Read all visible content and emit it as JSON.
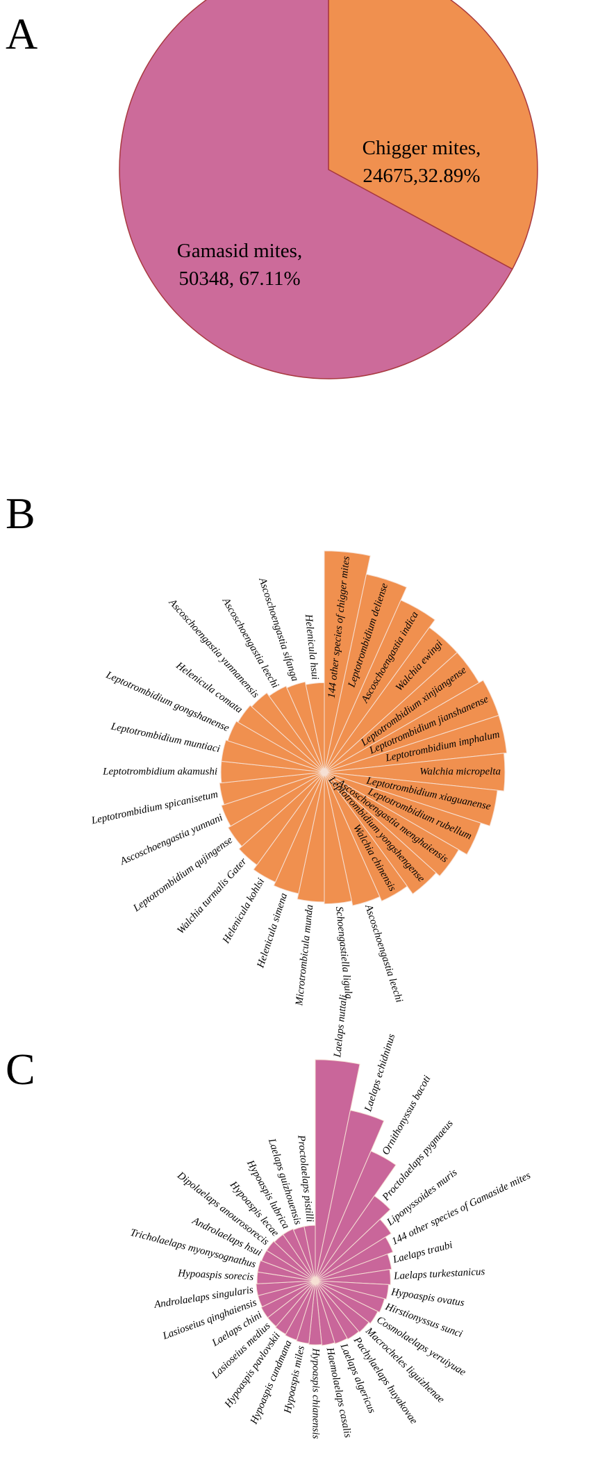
{
  "chart_data": [
    {
      "type": "pie",
      "label": "A",
      "categories": [
        "Chigger mites,",
        "Gamasid mites,"
      ],
      "values": [
        24675,
        50348
      ],
      "value_labels": [
        "24675,32.89%",
        "50348, 67.11%"
      ],
      "colors": [
        "#f0904f",
        "#cc6b9a"
      ]
    },
    {
      "type": "radial_bar",
      "label": "B",
      "color": "#f0904f",
      "ylim": [
        0,
        240
      ],
      "categories": [
        "144 other species of chigger mites",
        "Leptotrombidium deliense",
        "Ascoschoengastia indica",
        "Walchia ewingi",
        "Leptotrombidium xinjiangense",
        "Leptotrombidium jianshanense",
        "Leptotrombidium imphalum",
        "Walchia micropelta",
        "Leptotrombidium xiaguanense",
        "Leptotrombidium rubellum",
        "Ascoschoengastia menghaiensis",
        "Leptotrombidium yongshengense",
        "Walchia chinensis",
        "Ascoschoengastia leechi",
        "Schoengastiella ligula",
        "Microtrombicula munda",
        "Helenicula simena",
        "Helenicula kohlsi",
        "Walchia turmalis Gater",
        "Leptotrombidium qujingense",
        "Ascoschoengastia yunnani",
        "Leptotrombidium spicanisetum",
        "Leptotrombidium akamushi",
        "Leptotrombidium muntiaci",
        "Leptotrombidium gongshanense",
        "Helenicula comata",
        "Ascoschoengastia yunnanensis",
        "Ascoschoengastia leechi",
        "Ascoschoengastia sifanga",
        "Helenicula hsui"
      ],
      "values": [
        235,
        215,
        200,
        190,
        190,
        195,
        195,
        192,
        185,
        175,
        165,
        160,
        150,
        145,
        140,
        138,
        132,
        128,
        122,
        118,
        115,
        112,
        110,
        110,
        108,
        106,
        104,
        100,
        98,
        95
      ]
    },
    {
      "type": "radial_bar",
      "label": "C",
      "color": "#c9669a",
      "ylim": [
        0,
        240
      ],
      "categories": [
        "Laelaps nuttali",
        "Laelaps echidninus",
        "Ornithonyssus bacoti",
        "Proctolaelaps pygmaeus",
        "Liponyssoides muris",
        "144 other species of Gamaside mites",
        "Laelaps traubi",
        "Laelaps turkestanicus",
        "Hypoaspis ovatus",
        "Hirstionyssus sunci",
        "Cosmolaelaps yeruiyuae",
        "Macrocheles liguizhenae",
        "Pachylaelaps huyakovae",
        "Laelaps algericus",
        "Haemolaelaps casalis",
        "Hypoaspis chianensis",
        "Hypoaspis miles",
        "Hypoaspis cundmana",
        "Hypoaspis pavlovskii",
        "Lasioseius medius",
        "Laelaps chini",
        "Lasioseius qinghaiensis",
        "Androlaelaps singularis",
        "Hypoaspis sorecis",
        "Tricholaelaps myonysognathus",
        "Androlaelaps hsui",
        "Dipolaelaps anourosorecis",
        "Hypoaspis lecae",
        "Hypoaspis lubrica",
        "Laelaps guizhouensis",
        "Proctolaelaps pistilli"
      ],
      "values": [
        235,
        185,
        150,
        110,
        95,
        88,
        82,
        80,
        78,
        76,
        74,
        72,
        71,
        70,
        69,
        68,
        67,
        66,
        65,
        64,
        64,
        63,
        63,
        62,
        62,
        61,
        61,
        60,
        60,
        59,
        59
      ]
    }
  ]
}
